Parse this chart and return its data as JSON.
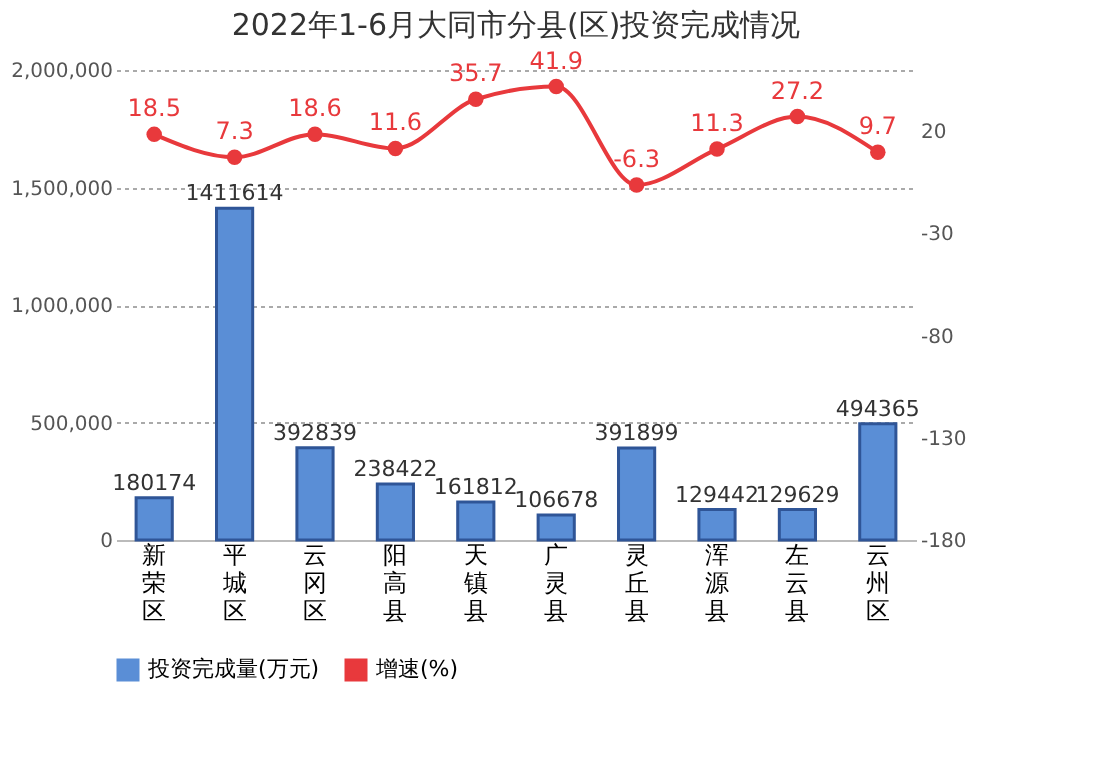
{
  "chart_data": {
    "type": "bar",
    "title": "2022年1-6月大同市分县(区)投资完成情况",
    "categories": [
      "新荣区",
      "平城区",
      "云冈区",
      "阳高县",
      "天镇县",
      "广灵县",
      "灵丘县",
      "浑源县",
      "左云县",
      "云州区"
    ],
    "series": [
      {
        "name": "投资完成量(万元)",
        "type": "bar",
        "color": "#5a8ed6",
        "values": [
          180174,
          1411614,
          392839,
          238422,
          161812,
          106678,
          391899,
          129442,
          129629,
          494365
        ]
      },
      {
        "name": "增速(%)",
        "type": "line",
        "axis": "y2",
        "color": "#e8393c",
        "marker": "circle",
        "values": [
          18.5,
          7.3,
          18.6,
          11.6,
          35.7,
          41.9,
          -6.3,
          11.3,
          27.2,
          9.7
        ]
      }
    ],
    "ylim": [
      0,
      2000000
    ],
    "yticks": [
      0,
      {
        "value": 500000,
        "label": "500,000"
      },
      {
        "value": 1000000,
        "label": "1,000,000"
      },
      {
        "value": 1500000,
        "label": "1,500,000"
      },
      {
        "value": 2000000,
        "label": "2,000,000"
      }
    ],
    "y2lim": [
      -180,
      50
    ],
    "y2ticks": [
      -180,
      -130,
      -80,
      -30,
      20
    ],
    "data_labels": true,
    "grid": "y",
    "legend": "bottom"
  }
}
